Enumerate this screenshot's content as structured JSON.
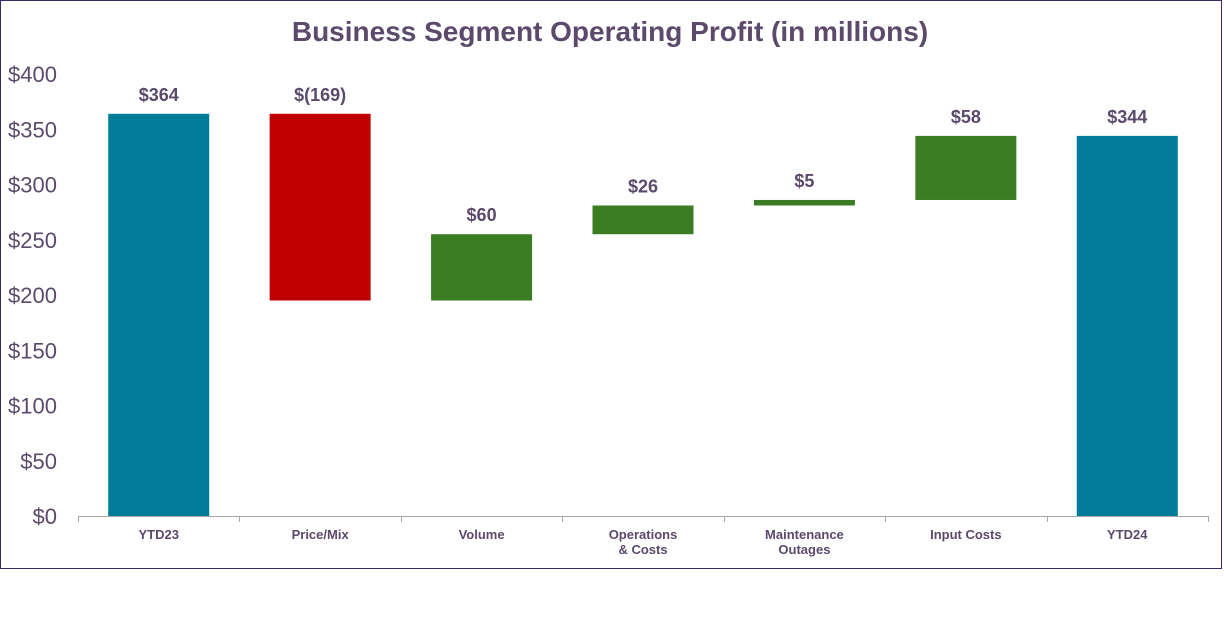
{
  "chart_data": {
    "type": "bar",
    "subtype": "waterfall",
    "title": "Business Segment Operating Profit (in millions)",
    "xlabel": "",
    "ylabel": "",
    "ylim": [
      0,
      400
    ],
    "yticks": [
      0,
      50,
      100,
      150,
      200,
      250,
      300,
      350,
      400
    ],
    "ytick_labels": [
      "$0",
      "$50",
      "$100",
      "$150",
      "$200",
      "$250",
      "$300",
      "$350",
      "$400"
    ],
    "grid": false,
    "categories": [
      [
        "YTD23"
      ],
      [
        "Price/Mix"
      ],
      [
        "Volume"
      ],
      [
        "Operations",
        "& Costs"
      ],
      [
        "Maintenance",
        "Outages"
      ],
      [
        "Input Costs"
      ],
      [
        "YTD24"
      ]
    ],
    "bars": [
      {
        "kind": "total",
        "start": 0,
        "end": 364,
        "label": "$364"
      },
      {
        "kind": "decrease",
        "start": 364,
        "end": 195,
        "label": "$(169)"
      },
      {
        "kind": "increase",
        "start": 195,
        "end": 255,
        "label": "$60"
      },
      {
        "kind": "increase",
        "start": 255,
        "end": 281,
        "label": "$26"
      },
      {
        "kind": "increase",
        "start": 281,
        "end": 286,
        "label": "$5"
      },
      {
        "kind": "increase",
        "start": 286,
        "end": 344,
        "label": "$58"
      },
      {
        "kind": "total",
        "start": 0,
        "end": 344,
        "label": "$344"
      }
    ],
    "colors": {
      "total": "#007c99",
      "decrease": "#c00000",
      "increase": "#3a7d22",
      "axis": "#a6a6a6",
      "text": "#5b4a6b"
    }
  }
}
